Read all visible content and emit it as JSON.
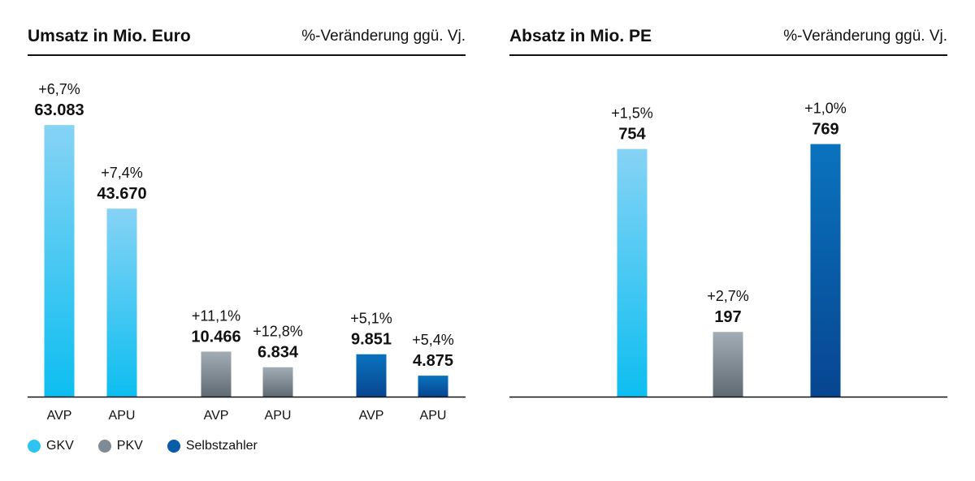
{
  "chart_data": [
    {
      "type": "bar",
      "title": "Umsatz in Mio. Euro",
      "subtitle": "%-Veränderung ggü. Vj.",
      "categories": [
        "AVP",
        "APU",
        "AVP",
        "APU",
        "AVP",
        "APU"
      ],
      "groups": [
        "GKV",
        "GKV",
        "PKV",
        "PKV",
        "Selbstzahler",
        "Selbstzahler"
      ],
      "values": [
        63083,
        43670,
        10466,
        6834,
        9851,
        4875
      ],
      "value_labels": [
        "63.083",
        "43.670",
        "10.466",
        "6.834",
        "9.851",
        "4.875"
      ],
      "change_labels": [
        "+6,7%",
        "+7,4%",
        "+11,1%",
        "+12,8%",
        "+5,1%",
        "+5,4%"
      ],
      "ylim": [
        0,
        65000
      ],
      "grid": false
    },
    {
      "type": "bar",
      "title": "Absatz in Mio. PE",
      "subtitle": "%-Veränderung ggü. Vj.",
      "categories": [
        "",
        "",
        ""
      ],
      "groups": [
        "GKV",
        "PKV",
        "Selbstzahler"
      ],
      "values": [
        754,
        197,
        769
      ],
      "value_labels": [
        "754",
        "197",
        "769"
      ],
      "change_labels": [
        "+1,5%",
        "+2,7%",
        "+1,0%"
      ],
      "ylim": [
        0,
        1215
      ],
      "grid": false
    }
  ],
  "legend": {
    "placement": "bottom-left",
    "items": [
      {
        "label": "GKV",
        "color": "#2EC4F2"
      },
      {
        "label": "PKV",
        "color": "#7E8A94"
      },
      {
        "label": "Selbstzahler",
        "color": "#0A5BA8"
      }
    ]
  },
  "colors": {
    "GKV": {
      "top": "#86D3F5",
      "bottom": "#0DBEF0"
    },
    "PKV": {
      "top": "#A3ADB5",
      "bottom": "#5F6A73"
    },
    "Selbstzahler": {
      "top": "#0A73BE",
      "bottom": "#074590"
    },
    "text": "#111111",
    "axis": "#111111"
  }
}
